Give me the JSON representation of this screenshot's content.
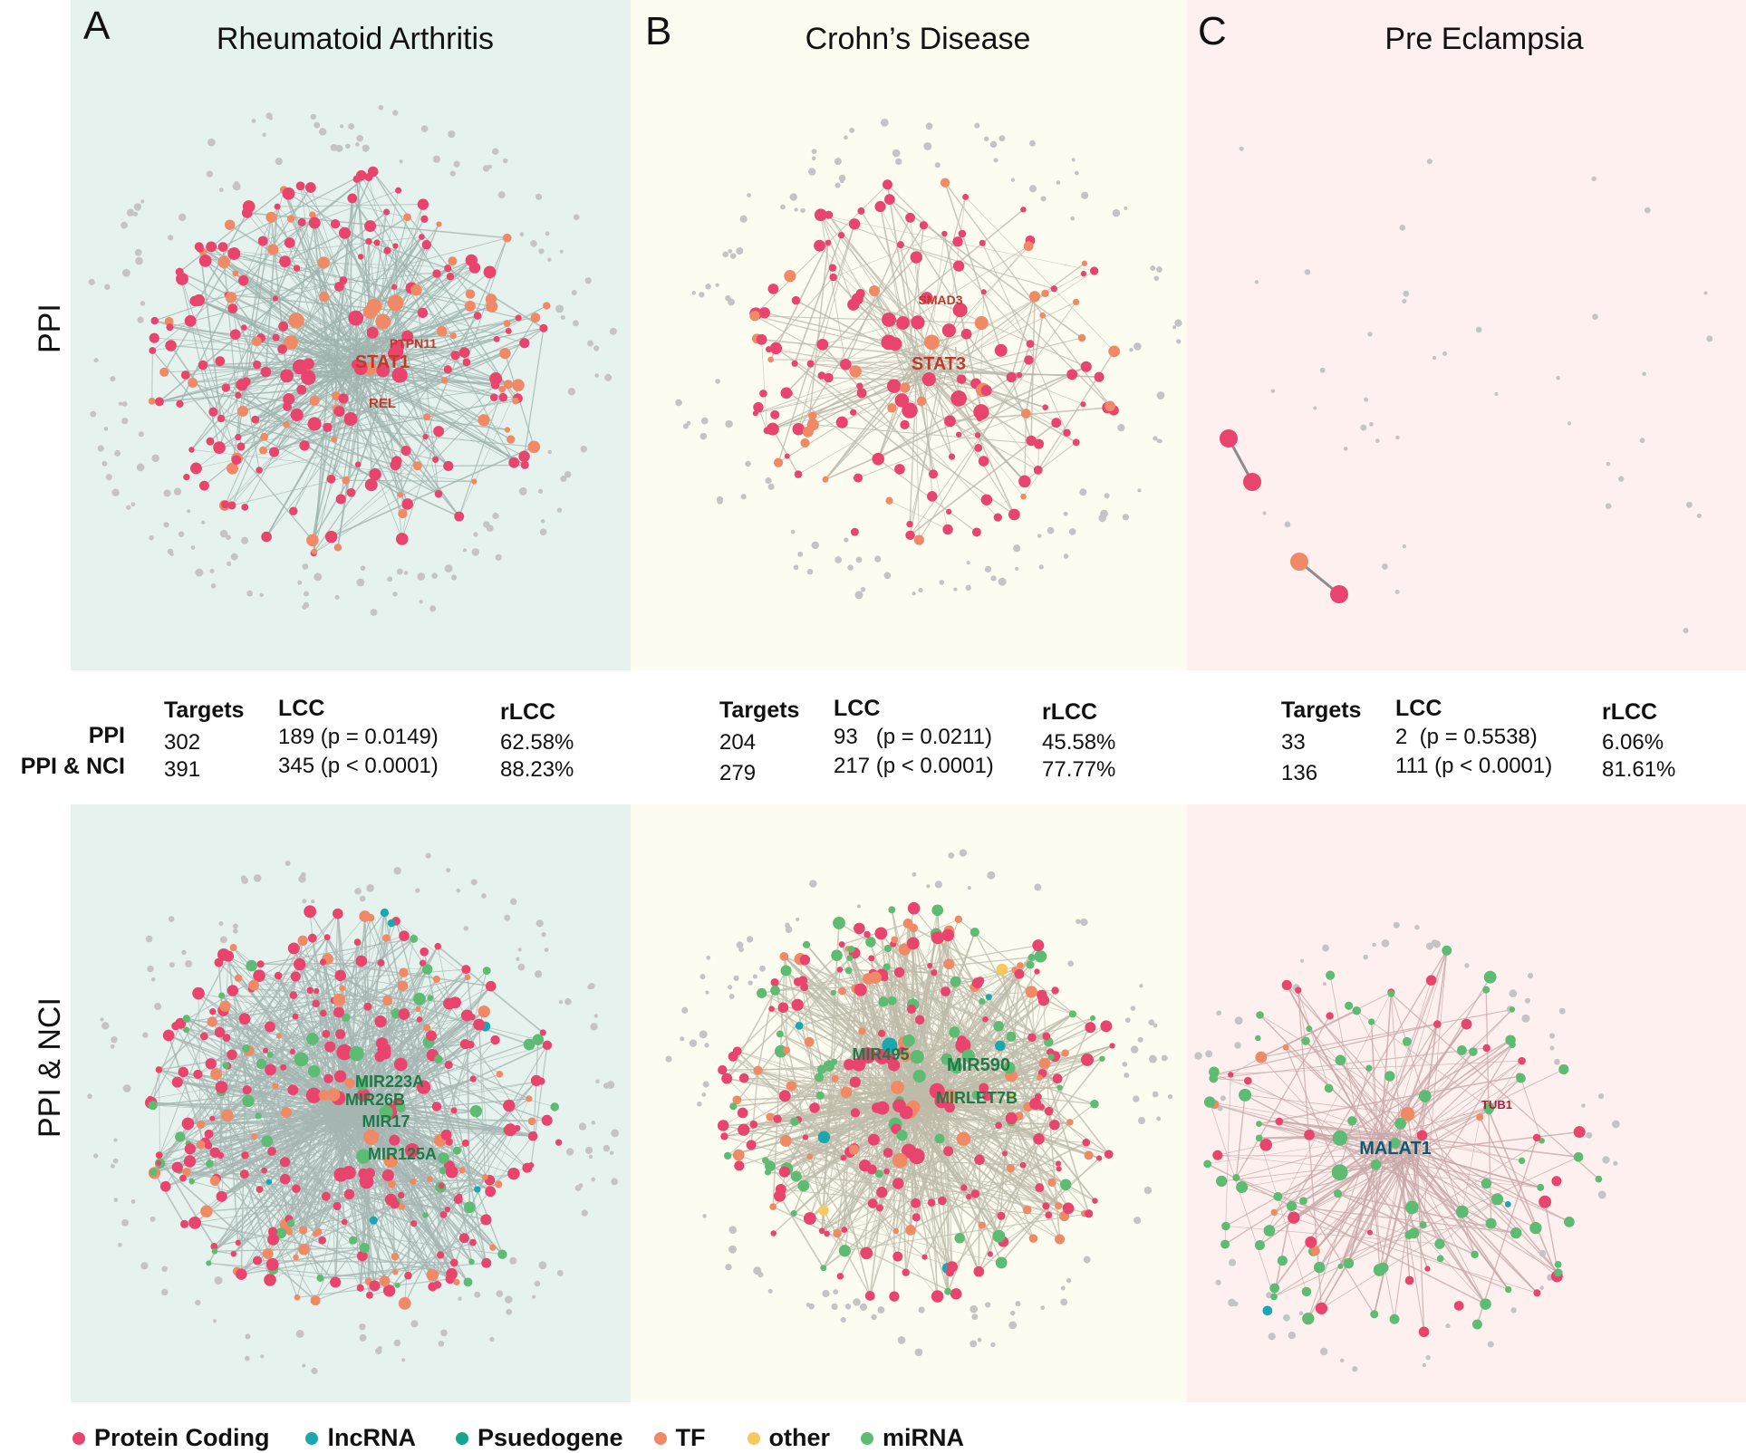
{
  "panels": [
    {
      "letter": "A",
      "title": "Rheumatoid Arthritis",
      "bg": "#e6f2ee",
      "ppi_hubs": [
        "PTPN11",
        "STAT1",
        "REL"
      ],
      "nci_hubs": [
        "MIR223A",
        "MIR26B",
        "MIR17",
        "MIR125A"
      ]
    },
    {
      "letter": "B",
      "title": "Crohn’s Disease",
      "bg": "#fcfcf1",
      "ppi_hubs": [
        "SMAD3",
        "STAT3"
      ],
      "nci_hubs": [
        "MIR495",
        "MIR590",
        "MIRLET7B"
      ]
    },
    {
      "letter": "C",
      "title": "Pre Eclampsia",
      "bg": "#fdf0ee",
      "ppi_hubs": [],
      "nci_hubs": [
        "TUB1",
        "MALAT1"
      ]
    }
  ],
  "row_labels": {
    "ppi": "PPI",
    "nci": "PPI & NCI"
  },
  "stats_headers": {
    "targets": "Targets",
    "lcc": "LCC",
    "rlcc": "rLCC"
  },
  "stats": [
    {
      "ppi": {
        "targets": "302",
        "lcc": "189 (p = 0.0149)",
        "rlcc": "62.58%"
      },
      "nci": {
        "targets": "391",
        "lcc": "345 (p < 0.0001)",
        "rlcc": "88.23%"
      }
    },
    {
      "ppi": {
        "targets": "204",
        "lcc": "93   (p = 0.0211)",
        "rlcc": "45.58%"
      },
      "nci": {
        "targets": "279",
        "lcc": "217 (p < 0.0001)",
        "rlcc": "77.77%"
      }
    },
    {
      "ppi": {
        "targets": "33",
        "lcc": "2  (p = 0.5538)",
        "rlcc": "6.06%"
      },
      "nci": {
        "targets": "136",
        "lcc": "111 (p < 0.0001)",
        "rlcc": "81.61%"
      }
    }
  ],
  "legend": [
    {
      "label": "Protein Coding",
      "color": "#e8446e"
    },
    {
      "label": "lncRNA",
      "color": "#1aa7b0"
    },
    {
      "label": "Psuedogene",
      "color": "#17a592"
    },
    {
      "label": "TF",
      "color": "#f08a66"
    },
    {
      "label": "other",
      "color": "#f6c85f"
    },
    {
      "label": "miRNA",
      "color": "#5dbb73"
    }
  ]
}
